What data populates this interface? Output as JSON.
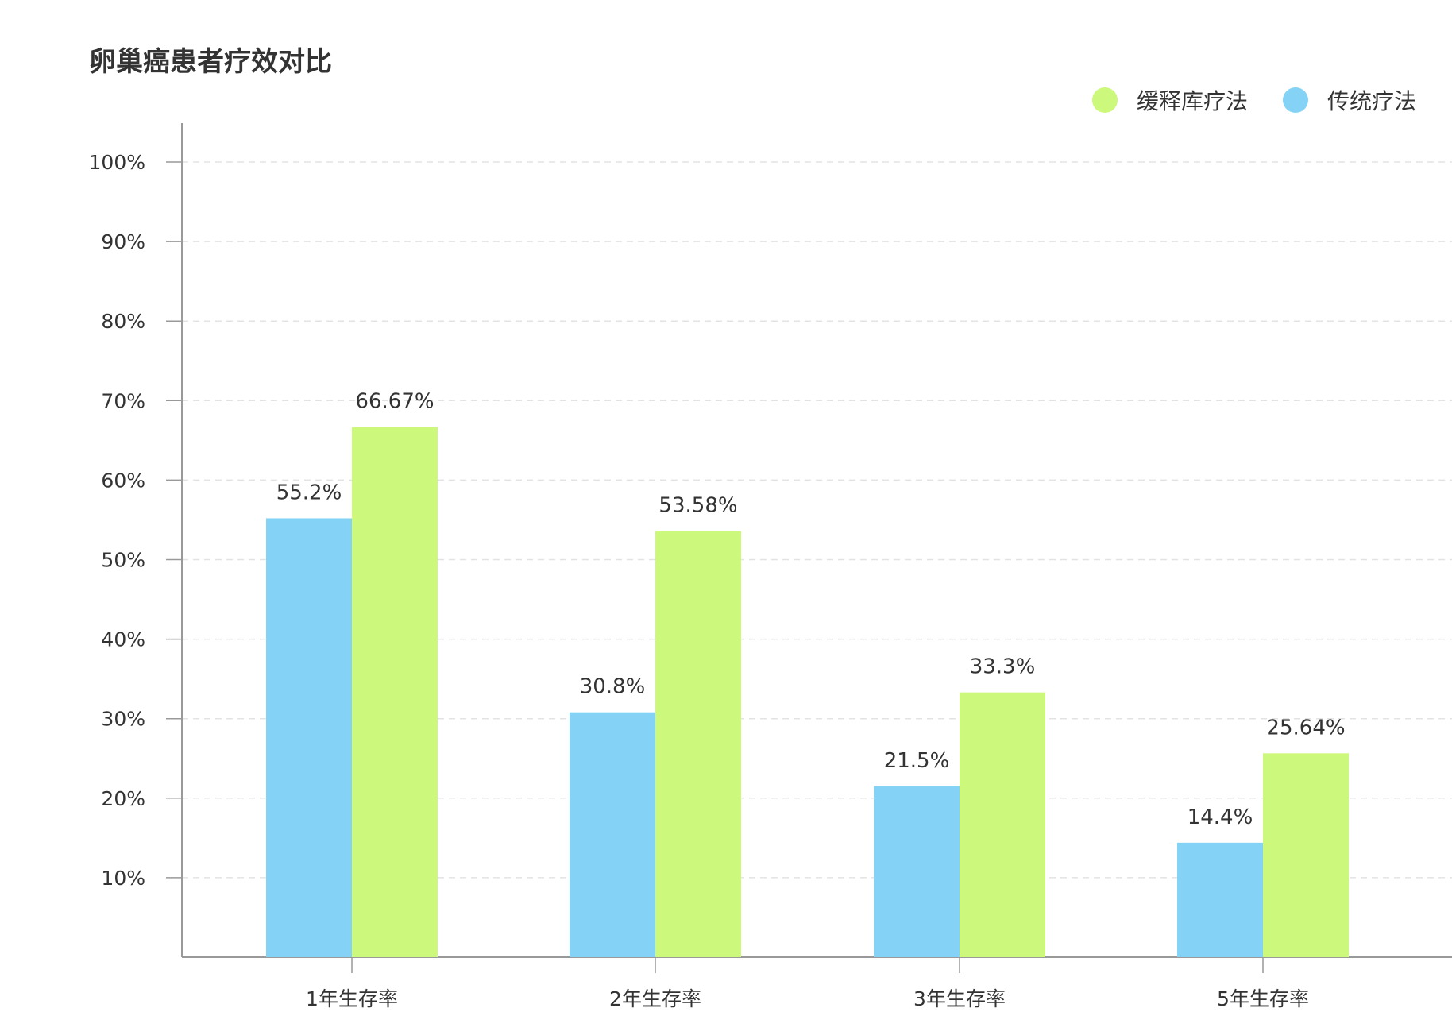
{
  "chart_data": {
    "type": "bar",
    "title": "卵巢癌患者疗效对比",
    "categories": [
      "1年生存率",
      "2年生存率",
      "3年生存率",
      "5年生存率"
    ],
    "series": [
      {
        "name": "传统疗法",
        "color": "#84d3f7",
        "values": [
          55.2,
          30.8,
          21.5,
          14.4
        ],
        "labels": [
          "55.2%",
          "30.8%",
          "21.5%",
          "14.4%"
        ]
      },
      {
        "name": "缓释库疗法",
        "color": "#ccf87c",
        "values": [
          66.67,
          53.58,
          33.3,
          25.64
        ],
        "labels": [
          "66.67%",
          "53.58%",
          "33.3%",
          "25.64%"
        ]
      }
    ],
    "legend_order": [
      1,
      0
    ],
    "ylim": [
      0,
      100
    ],
    "yticks": [
      10,
      20,
      30,
      40,
      50,
      60,
      70,
      80,
      90,
      100
    ],
    "ytick_labels": [
      "10%",
      "20%",
      "30%",
      "40%",
      "50%",
      "60%",
      "70%",
      "80%",
      "90%",
      "100%"
    ],
    "grid": true,
    "legend_position": "top-right"
  }
}
